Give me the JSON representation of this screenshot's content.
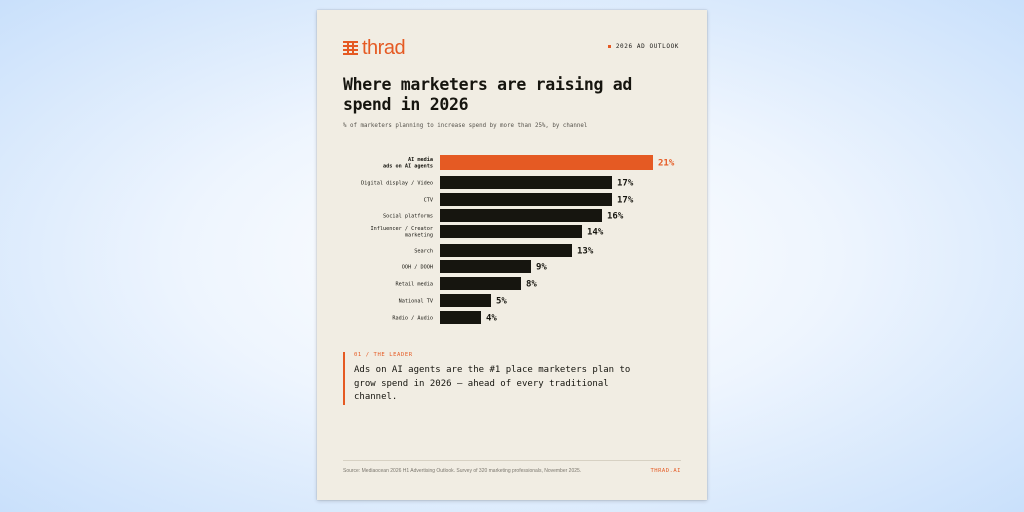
{
  "brand": {
    "logo_text": "thrad",
    "outlook_label": "2026 AD OUTLOOK",
    "site": "THRAD.AI"
  },
  "header": {
    "title": "Where marketers are raising ad spend in 2026",
    "subtitle": "% of marketers planning to increase spend by more than 25%, by channel"
  },
  "chart_data": {
    "type": "bar",
    "orientation": "horizontal",
    "title": "Where marketers are raising ad spend in 2026",
    "subtitle": "% of marketers planning to increase spend by more than 25%, by channel",
    "categories": [
      [
        "AI media",
        "ads on AI agents"
      ],
      [
        "Digital display / Video"
      ],
      [
        "CTV"
      ],
      [
        "Social platforms"
      ],
      [
        "Influencer / Creator",
        "marketing"
      ],
      [
        "Search"
      ],
      [
        "OOH / DOOH"
      ],
      [
        "Retail media"
      ],
      [
        "National TV"
      ],
      [
        "Radio / Audio"
      ]
    ],
    "values": [
      21,
      17,
      17,
      16,
      14,
      13,
      9,
      8,
      5,
      4
    ],
    "value_labels": [
      "21%",
      "17%",
      "17%",
      "16%",
      "14%",
      "13%",
      "9%",
      "8%",
      "5%",
      "4%"
    ],
    "highlight_index": 0,
    "colors": {
      "highlight": "#e55a23",
      "default": "#16150f"
    },
    "xlim": [
      0,
      21
    ],
    "grid": false
  },
  "callout": {
    "label": "01 / THE LEADER",
    "text": "Ads on AI agents are the #1 place marketers plan to grow spend in 2026 — ahead of every traditional channel."
  },
  "footer": {
    "source": "Source: Mediaocean 2026 H1 Advertising Outlook. Survey of 320 marketing professionals, November 2025."
  }
}
